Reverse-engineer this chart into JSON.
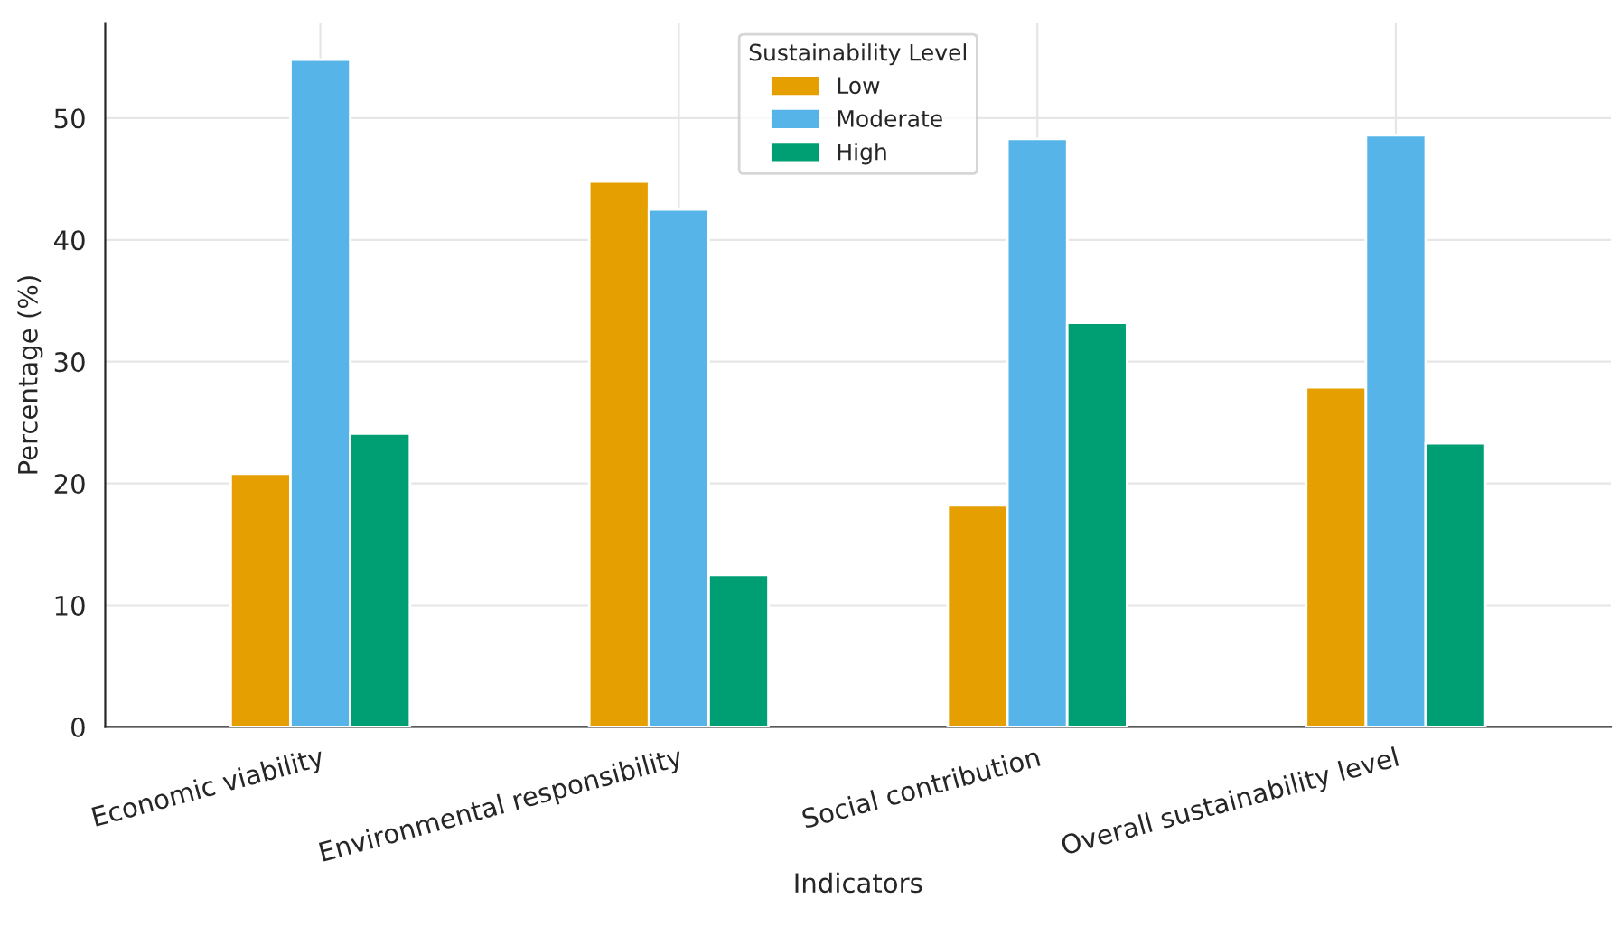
{
  "chart_data": {
    "type": "bar",
    "xlabel": "Indicators",
    "ylabel": "Percentage (%)",
    "categories": [
      "Economic viability",
      "Environmental responsibility",
      "Social contribution",
      "Overall sustainability level"
    ],
    "series": [
      {
        "name": "Low",
        "color": "#e69f00",
        "values": [
          20.8,
          44.8,
          18.2,
          27.9
        ]
      },
      {
        "name": "Moderate",
        "color": "#56b4e9",
        "values": [
          54.8,
          42.5,
          48.3,
          48.6
        ]
      },
      {
        "name": "High",
        "color": "#009e73",
        "values": [
          24.1,
          12.5,
          33.2,
          23.3
        ]
      }
    ],
    "legend_title": "Sustainability Level",
    "legend": "top center",
    "ylim": [
      0,
      57.8
    ],
    "yticks": [
      0,
      10,
      20,
      30,
      40,
      50
    ],
    "grid": true
  }
}
